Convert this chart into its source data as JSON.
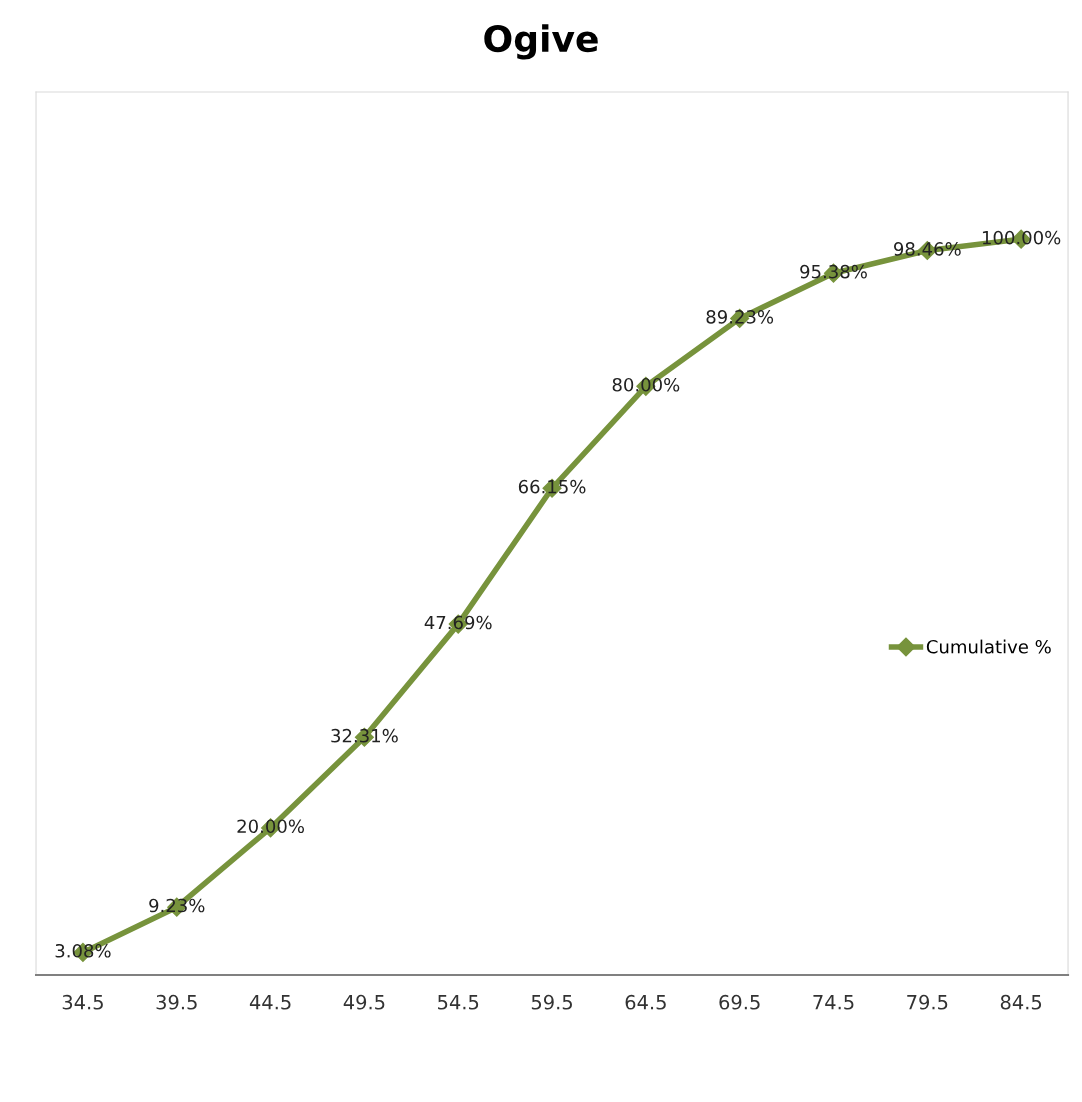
{
  "chart_data": {
    "type": "line",
    "title": "Ogive",
    "categories": [
      "34.5",
      "39.5",
      "44.5",
      "49.5",
      "54.5",
      "59.5",
      "64.5",
      "69.5",
      "74.5",
      "79.5",
      "84.5"
    ],
    "series": [
      {
        "name": "Cumulative %",
        "color": "#77933c",
        "values": [
          3.08,
          9.23,
          20.0,
          32.31,
          47.69,
          66.15,
          80.0,
          89.23,
          95.38,
          98.46,
          100.0
        ],
        "value_labels": [
          "3.08%",
          "9.23%",
          "20.00%",
          "32.31%",
          "47.69%",
          "66.15%",
          "80.00%",
          "89.23%",
          "95.38%",
          "98.46%",
          "100.00%"
        ]
      }
    ],
    "ylim": [
      0,
      120
    ],
    "tick_labels": "x",
    "legend": "right",
    "marker": "diamond",
    "line_style": "solid",
    "grid": false
  }
}
